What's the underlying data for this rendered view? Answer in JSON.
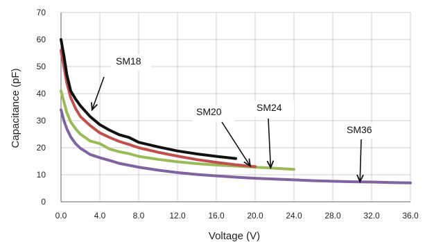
{
  "chart_data": {
    "type": "line",
    "xlabel": "Voltage (V)",
    "ylabel": "Capacitance (pF)",
    "xlim": [
      0,
      36
    ],
    "ylim": [
      0,
      70
    ],
    "x_ticks": [
      "0.0",
      "4.0",
      "8.0",
      "12.0",
      "16.0",
      "20.0",
      "24.0",
      "28.0",
      "32.0",
      "36.0"
    ],
    "y_ticks": [
      "0",
      "10",
      "20",
      "30",
      "40",
      "50",
      "60",
      "70"
    ],
    "grid": true,
    "legend": "none",
    "annotations": [
      "SM18",
      "SM20",
      "SM24",
      "SM36"
    ],
    "series": [
      {
        "name": "SM18",
        "color": "#111111",
        "x": [
          0.0,
          0.3,
          0.6,
          1.0,
          1.5,
          2.0,
          3.0,
          4.0,
          5.0,
          6.0,
          7.0,
          8.0,
          10.0,
          12.0,
          14.0,
          16.0,
          18.0
        ],
        "y": [
          60,
          54,
          47,
          41,
          38,
          35.5,
          31.5,
          28.5,
          26.5,
          24.8,
          23.8,
          22,
          20.3,
          18.8,
          17.7,
          16.8,
          16
        ]
      },
      {
        "name": "SM20",
        "color": "#c0504d",
        "x": [
          0.0,
          0.3,
          0.6,
          1.0,
          1.5,
          2.0,
          3.0,
          4.0,
          5.0,
          6.0,
          7.0,
          8.0,
          10.0,
          12.0,
          14.0,
          16.0,
          18.0,
          20.0
        ],
        "y": [
          56,
          50,
          44,
          38.5,
          34.5,
          31.5,
          28.2,
          25.5,
          23.8,
          22.3,
          21.2,
          20,
          18.3,
          16.9,
          15.6,
          14.6,
          13.7,
          13
        ]
      },
      {
        "name": "SM24",
        "color": "#9bbb59",
        "x": [
          0.0,
          0.3,
          0.6,
          1.0,
          1.5,
          2.0,
          3.0,
          4.0,
          5.0,
          6.0,
          7.0,
          8.0,
          10.0,
          12.0,
          14.0,
          16.0,
          18.0,
          20.0,
          22.0,
          24.0
        ],
        "y": [
          41,
          37,
          33,
          29.5,
          27,
          25,
          22.5,
          21.5,
          19.5,
          18.5,
          17.8,
          16.8,
          15.7,
          14.8,
          14.1,
          13.6,
          13.2,
          12.8,
          12.4,
          12
        ]
      },
      {
        "name": "SM36",
        "color": "#8064a2",
        "x": [
          0.0,
          0.3,
          0.6,
          1.0,
          1.5,
          2.0,
          3.0,
          4.0,
          5.0,
          6.0,
          8.0,
          10.0,
          12.0,
          14.0,
          16.0,
          18.0,
          20.0,
          22.0,
          24.0,
          26.0,
          28.0,
          30.0,
          32.0,
          34.0,
          36.0
        ],
        "y": [
          34,
          30,
          27,
          24,
          21.5,
          19.8,
          17.5,
          16.3,
          15.3,
          14.2,
          12.8,
          11.7,
          10.8,
          10.1,
          9.6,
          9.1,
          8.7,
          8.4,
          8.1,
          7.8,
          7.6,
          7.4,
          7.3,
          7.1,
          7
        ]
      }
    ]
  }
}
